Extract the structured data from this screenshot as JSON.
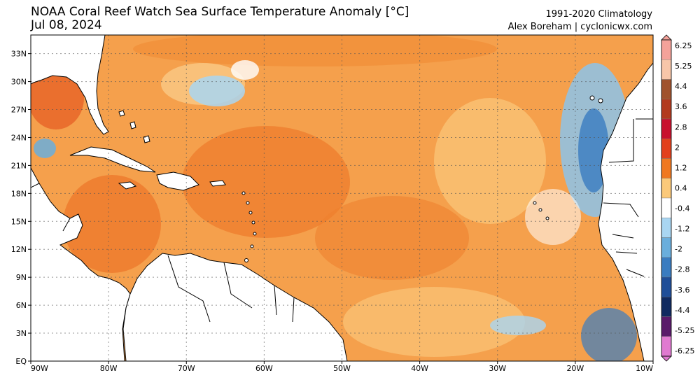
{
  "header": {
    "title": "NOAA Coral Reef Watch Sea Surface Temperature Anomaly [°C]",
    "date": "Jul 08, 2024",
    "climatology": "1991-2020 Climatology",
    "credit": "Alex Boreham | cyclonicwx.com"
  },
  "map": {
    "lon_range": [
      -90,
      -10
    ],
    "lat_range": [
      0,
      35
    ],
    "lat_ticks": [
      {
        "value": 33,
        "label": "33N"
      },
      {
        "value": 30,
        "label": "30N"
      },
      {
        "value": 27,
        "label": "27N"
      },
      {
        "value": 24,
        "label": "24N"
      },
      {
        "value": 21,
        "label": "21N"
      },
      {
        "value": 18,
        "label": "18N"
      },
      {
        "value": 15,
        "label": "15N"
      },
      {
        "value": 12,
        "label": "12N"
      },
      {
        "value": 9,
        "label": "9N"
      },
      {
        "value": 6,
        "label": "6N"
      },
      {
        "value": 3,
        "label": "3N"
      },
      {
        "value": 0,
        "label": "EQ"
      }
    ],
    "lon_ticks": [
      {
        "value": -90,
        "label": "90W"
      },
      {
        "value": -80,
        "label": "80W"
      },
      {
        "value": -70,
        "label": "70W"
      },
      {
        "value": -60,
        "label": "60W"
      },
      {
        "value": -50,
        "label": "50W"
      },
      {
        "value": -40,
        "label": "40W"
      },
      {
        "value": -30,
        "label": "30W"
      },
      {
        "value": -20,
        "label": "20W"
      },
      {
        "value": -10,
        "label": "10W"
      }
    ],
    "grid": true,
    "land_color": "#ffffff",
    "ocean_base_color": "#f5a04c"
  },
  "colorbar": {
    "labels": [
      "6.25",
      "5.25",
      "4.4",
      "3.6",
      "2.8",
      "2",
      "1.2",
      "0.4",
      "-0.4",
      "-1.2",
      "-2",
      "-2.8",
      "-3.6",
      "-4.4",
      "-5.25",
      "-6.25"
    ],
    "colors": [
      "#f4a29a",
      "#f7c6a9",
      "#a0522d",
      "#b23a1e",
      "#c8102e",
      "#e2401c",
      "#f07820",
      "#fbc97a",
      "#ffffff",
      "#a9d6f2",
      "#6aaedc",
      "#3a7cc0",
      "#1f4e98",
      "#102a60",
      "#5a1a6a",
      "#e07ad0"
    ]
  }
}
